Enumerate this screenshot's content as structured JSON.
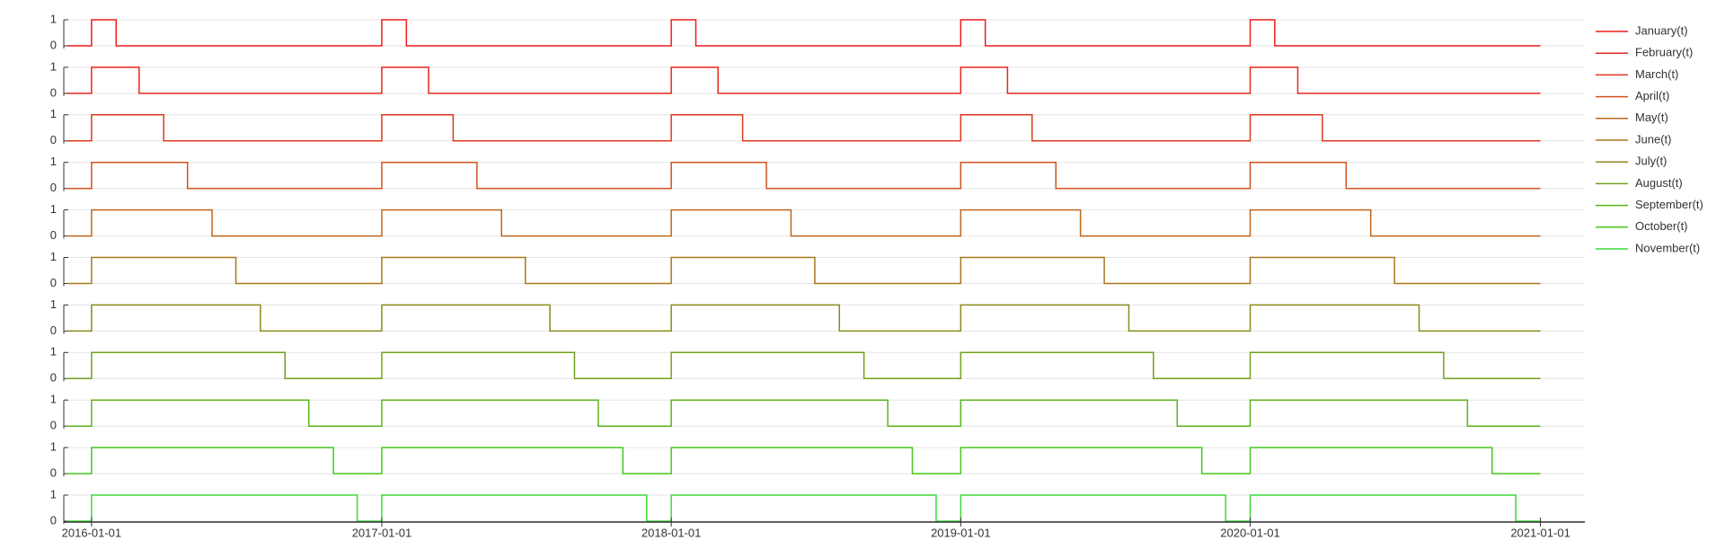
{
  "chart_data": {
    "type": "line",
    "step": "post",
    "subplots": true,
    "grid": true,
    "x": [
      "2015-12-01",
      "2016-01-01",
      "2016-02-01",
      "2016-03-01",
      "2016-04-01",
      "2016-05-01",
      "2016-06-01",
      "2016-07-01",
      "2016-08-01",
      "2016-09-01",
      "2016-10-01",
      "2016-11-01",
      "2016-12-01",
      "2017-01-01",
      "2017-02-01",
      "2017-03-01",
      "2017-04-01",
      "2017-05-01",
      "2017-06-01",
      "2017-07-01",
      "2017-08-01",
      "2017-09-01",
      "2017-10-01",
      "2017-11-01",
      "2017-12-01",
      "2018-01-01",
      "2018-02-01",
      "2018-03-01",
      "2018-04-01",
      "2018-05-01",
      "2018-06-01",
      "2018-07-01",
      "2018-08-01",
      "2018-09-01",
      "2018-10-01",
      "2018-11-01",
      "2018-12-01",
      "2019-01-01",
      "2019-02-01",
      "2019-03-01",
      "2019-04-01",
      "2019-05-01",
      "2019-06-01",
      "2019-07-01",
      "2019-08-01",
      "2019-09-01",
      "2019-10-01",
      "2019-11-01",
      "2019-12-01",
      "2020-01-01",
      "2020-02-01",
      "2020-03-01",
      "2020-04-01",
      "2020-05-01",
      "2020-06-01",
      "2020-07-01",
      "2020-08-01",
      "2020-09-01",
      "2020-10-01",
      "2020-11-01",
      "2020-12-01"
    ],
    "xlim": [
      "2015-11-27",
      "2021-02-26"
    ],
    "xticks": [
      "2016-01-01",
      "2017-01-01",
      "2018-01-01",
      "2019-01-01",
      "2020-01-01",
      "2021-01-01"
    ],
    "ylim": [
      0,
      1
    ],
    "yticks": [
      0,
      1
    ],
    "series": [
      {
        "name": "January(t)",
        "color": "#f01c1c",
        "values": [
          0,
          1,
          0,
          0,
          0,
          0,
          0,
          0,
          0,
          0,
          0,
          0,
          0,
          1,
          0,
          0,
          0,
          0,
          0,
          0,
          0,
          0,
          0,
          0,
          0,
          1,
          0,
          0,
          0,
          0,
          0,
          0,
          0,
          0,
          0,
          0,
          0,
          1,
          0,
          0,
          0,
          0,
          0,
          0,
          0,
          0,
          0,
          0,
          0,
          1,
          0,
          0,
          0,
          0,
          0,
          0,
          0,
          0,
          0,
          0,
          0
        ]
      },
      {
        "name": "February(t)",
        "color": "#e6281c",
        "values": [
          0,
          1,
          1,
          0,
          0,
          0,
          0,
          0,
          0,
          0,
          0,
          0,
          0,
          1,
          1,
          0,
          0,
          0,
          0,
          0,
          0,
          0,
          0,
          0,
          0,
          1,
          1,
          0,
          0,
          0,
          0,
          0,
          0,
          0,
          0,
          0,
          0,
          1,
          1,
          0,
          0,
          0,
          0,
          0,
          0,
          0,
          0,
          0,
          0,
          1,
          1,
          0,
          0,
          0,
          0,
          0,
          0,
          0,
          0,
          0,
          0
        ]
      },
      {
        "name": "March(t)",
        "color": "#dc3a1c",
        "values": [
          0,
          1,
          1,
          1,
          0,
          0,
          0,
          0,
          0,
          0,
          0,
          0,
          0,
          1,
          1,
          1,
          0,
          0,
          0,
          0,
          0,
          0,
          0,
          0,
          0,
          1,
          1,
          1,
          0,
          0,
          0,
          0,
          0,
          0,
          0,
          0,
          0,
          1,
          1,
          1,
          0,
          0,
          0,
          0,
          0,
          0,
          0,
          0,
          0,
          1,
          1,
          1,
          0,
          0,
          0,
          0,
          0,
          0,
          0,
          0,
          0
        ]
      },
      {
        "name": "April(t)",
        "color": "#d2501c",
        "values": [
          0,
          1,
          1,
          1,
          1,
          0,
          0,
          0,
          0,
          0,
          0,
          0,
          0,
          1,
          1,
          1,
          1,
          0,
          0,
          0,
          0,
          0,
          0,
          0,
          0,
          1,
          1,
          1,
          1,
          0,
          0,
          0,
          0,
          0,
          0,
          0,
          0,
          1,
          1,
          1,
          1,
          0,
          0,
          0,
          0,
          0,
          0,
          0,
          0,
          1,
          1,
          1,
          1,
          0,
          0,
          0,
          0,
          0,
          0,
          0,
          0
        ]
      },
      {
        "name": "May(t)",
        "color": "#c0661c",
        "values": [
          0,
          1,
          1,
          1,
          1,
          1,
          0,
          0,
          0,
          0,
          0,
          0,
          0,
          1,
          1,
          1,
          1,
          1,
          0,
          0,
          0,
          0,
          0,
          0,
          0,
          1,
          1,
          1,
          1,
          1,
          0,
          0,
          0,
          0,
          0,
          0,
          0,
          1,
          1,
          1,
          1,
          1,
          0,
          0,
          0,
          0,
          0,
          0,
          0,
          1,
          1,
          1,
          1,
          1,
          0,
          0,
          0,
          0,
          0,
          0,
          0
        ]
      },
      {
        "name": "June(t)",
        "color": "#a8781c",
        "values": [
          0,
          1,
          1,
          1,
          1,
          1,
          1,
          0,
          0,
          0,
          0,
          0,
          0,
          1,
          1,
          1,
          1,
          1,
          1,
          0,
          0,
          0,
          0,
          0,
          0,
          1,
          1,
          1,
          1,
          1,
          1,
          0,
          0,
          0,
          0,
          0,
          0,
          1,
          1,
          1,
          1,
          1,
          1,
          0,
          0,
          0,
          0,
          0,
          0,
          1,
          1,
          1,
          1,
          1,
          1,
          0,
          0,
          0,
          0,
          0,
          0
        ]
      },
      {
        "name": "July(t)",
        "color": "#8c8a1c",
        "values": [
          0,
          1,
          1,
          1,
          1,
          1,
          1,
          1,
          0,
          0,
          0,
          0,
          0,
          1,
          1,
          1,
          1,
          1,
          1,
          1,
          0,
          0,
          0,
          0,
          0,
          1,
          1,
          1,
          1,
          1,
          1,
          1,
          0,
          0,
          0,
          0,
          0,
          1,
          1,
          1,
          1,
          1,
          1,
          1,
          0,
          0,
          0,
          0,
          0,
          1,
          1,
          1,
          1,
          1,
          1,
          1,
          0,
          0,
          0,
          0,
          0
        ]
      },
      {
        "name": "August(t)",
        "color": "#72a01c",
        "values": [
          0,
          1,
          1,
          1,
          1,
          1,
          1,
          1,
          1,
          0,
          0,
          0,
          0,
          1,
          1,
          1,
          1,
          1,
          1,
          1,
          1,
          0,
          0,
          0,
          0,
          1,
          1,
          1,
          1,
          1,
          1,
          1,
          1,
          0,
          0,
          0,
          0,
          1,
          1,
          1,
          1,
          1,
          1,
          1,
          1,
          0,
          0,
          0,
          0,
          1,
          1,
          1,
          1,
          1,
          1,
          1,
          1,
          0,
          0,
          0,
          0
        ]
      },
      {
        "name": "September(t)",
        "color": "#5ab41c",
        "values": [
          0,
          1,
          1,
          1,
          1,
          1,
          1,
          1,
          1,
          1,
          0,
          0,
          0,
          1,
          1,
          1,
          1,
          1,
          1,
          1,
          1,
          1,
          0,
          0,
          0,
          1,
          1,
          1,
          1,
          1,
          1,
          1,
          1,
          1,
          0,
          0,
          0,
          1,
          1,
          1,
          1,
          1,
          1,
          1,
          1,
          1,
          0,
          0,
          0,
          1,
          1,
          1,
          1,
          1,
          1,
          1,
          1,
          1,
          0,
          0,
          0
        ]
      },
      {
        "name": "October(t)",
        "color": "#46c81e",
        "values": [
          0,
          1,
          1,
          1,
          1,
          1,
          1,
          1,
          1,
          1,
          1,
          0,
          0,
          1,
          1,
          1,
          1,
          1,
          1,
          1,
          1,
          1,
          1,
          0,
          0,
          1,
          1,
          1,
          1,
          1,
          1,
          1,
          1,
          1,
          1,
          0,
          0,
          1,
          1,
          1,
          1,
          1,
          1,
          1,
          1,
          1,
          1,
          0,
          0,
          1,
          1,
          1,
          1,
          1,
          1,
          1,
          1,
          1,
          1,
          0,
          0
        ]
      },
      {
        "name": "November(t)",
        "color": "#3cd83c",
        "values": [
          0,
          1,
          1,
          1,
          1,
          1,
          1,
          1,
          1,
          1,
          1,
          1,
          0,
          1,
          1,
          1,
          1,
          1,
          1,
          1,
          1,
          1,
          1,
          1,
          0,
          1,
          1,
          1,
          1,
          1,
          1,
          1,
          1,
          1,
          1,
          1,
          0,
          1,
          1,
          1,
          1,
          1,
          1,
          1,
          1,
          1,
          1,
          1,
          0,
          1,
          1,
          1,
          1,
          1,
          1,
          1,
          1,
          1,
          1,
          1,
          0
        ]
      }
    ]
  }
}
